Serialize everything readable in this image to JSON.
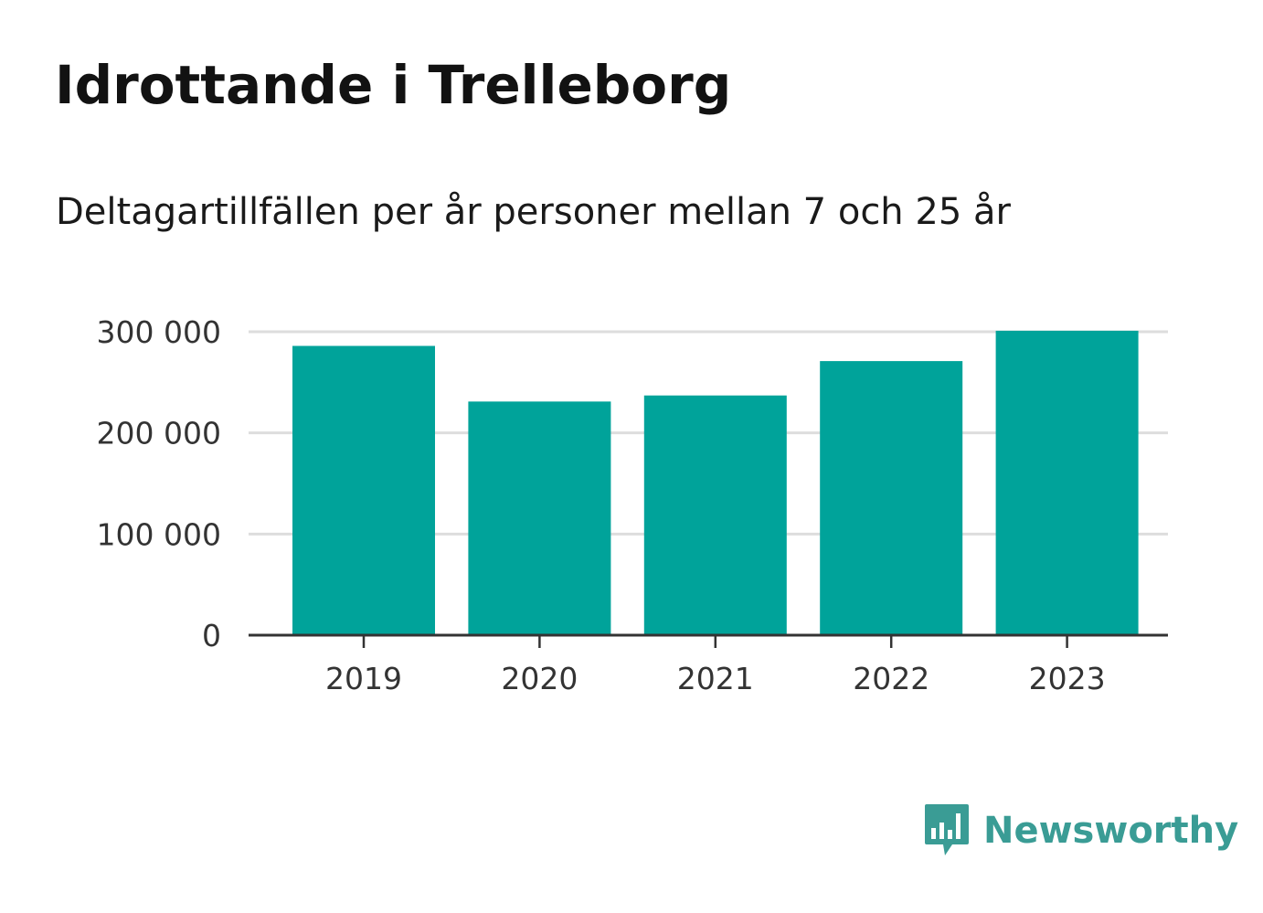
{
  "header": {
    "title": "Idrottande i Trelleborg",
    "subtitle": "Deltagartillfällen per år personer mellan 7 och 25 år"
  },
  "brand": {
    "name": "Newsworthy",
    "icon": "newsworthy-logo-icon",
    "color": "#3a9c95"
  },
  "colors": {
    "bar": "#00a39a",
    "grid": "#dddddd",
    "axis": "#333333"
  },
  "chart_data": {
    "type": "bar",
    "title": "Idrottande i Trelleborg",
    "subtitle": "Deltagartillfällen per år personer mellan 7 och 25 år",
    "categories": [
      "2019",
      "2020",
      "2021",
      "2022",
      "2023"
    ],
    "values": [
      286000,
      231000,
      237000,
      271000,
      301000
    ],
    "ylim": [
      0,
      300000
    ],
    "yticks": [
      0,
      100000,
      200000,
      300000
    ],
    "ytick_labels": [
      "0",
      "100 000",
      "200 000",
      "300 000"
    ],
    "xlabel": "",
    "ylabel": "",
    "grid": true,
    "legend": "none"
  }
}
